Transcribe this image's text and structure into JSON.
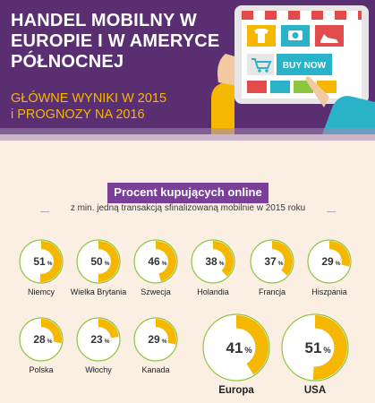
{
  "header": {
    "title_lines": [
      "HANDEL MOBILNY W",
      "EUROPIE I W AMERYCE",
      "PÓŁNOCNEJ"
    ],
    "subtitle_lines": [
      "GŁÓWNE WYNIKI W 2015",
      "i PROGNOZY NA 2016"
    ]
  },
  "illustration": {
    "button_label": "BUY NOW"
  },
  "colors": {
    "purple": "#5a2f72",
    "accent": "#f5b700",
    "ring_bg": "#ffffff",
    "ring_border": "#8dc63f",
    "text": "#222222"
  },
  "chart_data": {
    "type": "pie",
    "title": "Procent kupujących online",
    "subtitle": "z min. jedną transakcją sfinalizowaną mobilnie w 2015 roku",
    "unit": "%",
    "categories": [
      "Niemcy",
      "Wielka Brytania",
      "Szwecja",
      "Holandia",
      "Francja",
      "Hiszpania",
      "Polska",
      "Włochy",
      "Kanada",
      "Europa",
      "USA"
    ],
    "values": [
      51,
      50,
      46,
      38,
      37,
      29,
      28,
      23,
      29,
      41,
      51
    ]
  }
}
